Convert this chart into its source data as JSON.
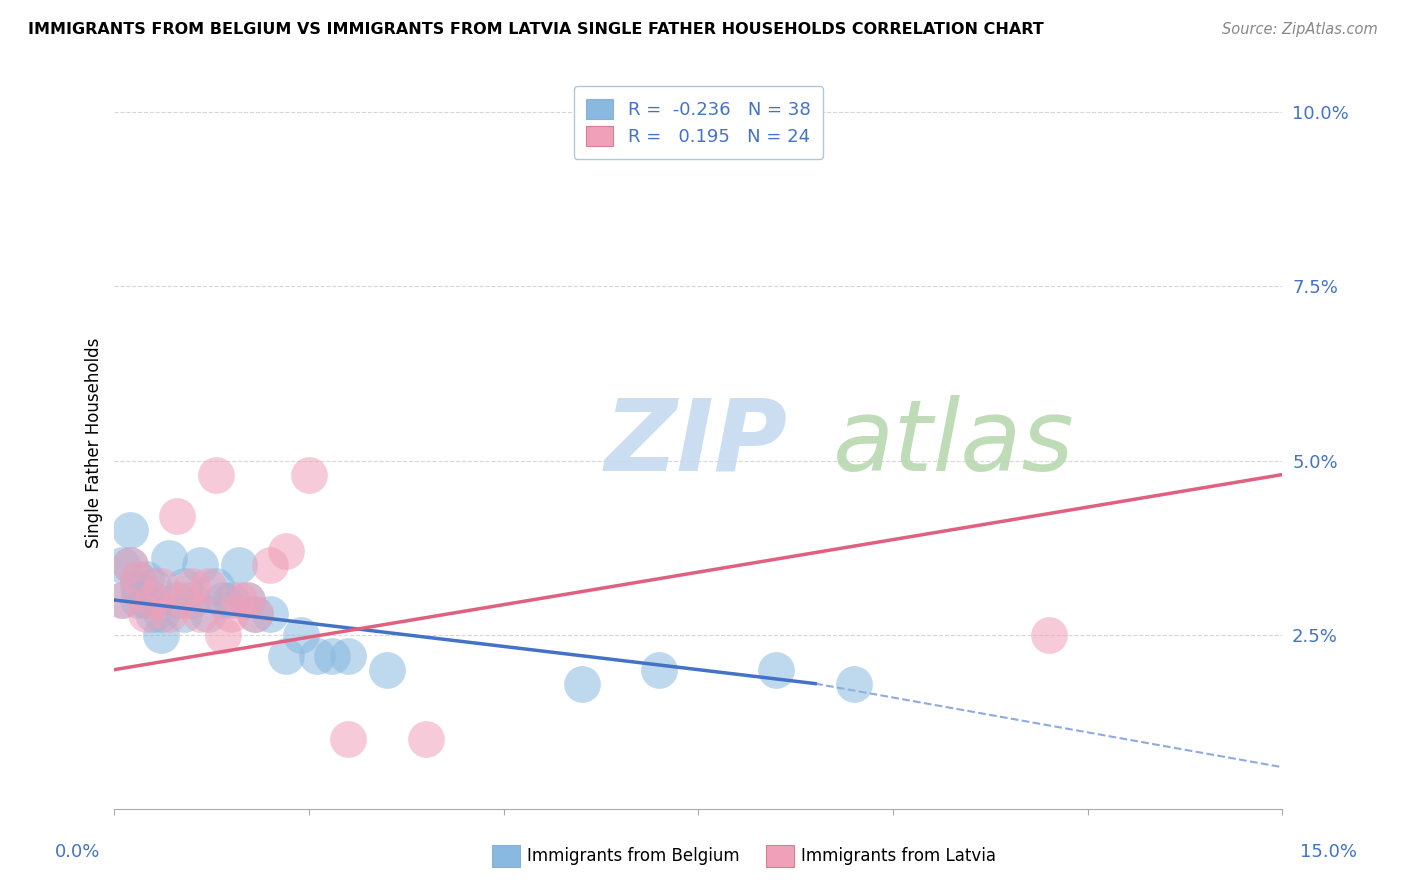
{
  "title": "IMMIGRANTS FROM BELGIUM VS IMMIGRANTS FROM LATVIA SINGLE FATHER HOUSEHOLDS CORRELATION CHART",
  "source": "Source: ZipAtlas.com",
  "ylabel": "Single Father Households",
  "legend_label_belgium": "Immigrants from Belgium",
  "legend_label_latvia": "Immigrants from Latvia",
  "xlim": [
    0.0,
    0.15
  ],
  "ylim": [
    0.0,
    0.105
  ],
  "R_belgium": -0.236,
  "N_belgium": 38,
  "R_latvia": 0.195,
  "N_latvia": 24,
  "color_belgium": "#89b8e0",
  "color_latvia": "#f0a0b8",
  "color_trend_belgium": "#4472c4",
  "color_trend_latvia": "#e06080",
  "watermark_zip": "ZIP",
  "watermark_atlas": "atlas",
  "watermark_color_zip": "#c8dff0",
  "watermark_color_atlas": "#d0e8c0",
  "y_tick_vals": [
    0.025,
    0.05,
    0.075,
    0.1
  ],
  "y_tick_labels": [
    "2.5%",
    "5.0%",
    "7.5%",
    "10.0%"
  ],
  "belgium_x": [
    0.001,
    0.001,
    0.002,
    0.002,
    0.003,
    0.003,
    0.003,
    0.004,
    0.004,
    0.005,
    0.005,
    0.005,
    0.006,
    0.006,
    0.007,
    0.008,
    0.009,
    0.009,
    0.01,
    0.011,
    0.012,
    0.013,
    0.014,
    0.015,
    0.016,
    0.017,
    0.018,
    0.02,
    0.022,
    0.024,
    0.026,
    0.028,
    0.03,
    0.035,
    0.06,
    0.07,
    0.085,
    0.095
  ],
  "belgium_y": [
    0.03,
    0.035,
    0.035,
    0.04,
    0.03,
    0.032,
    0.033,
    0.03,
    0.033,
    0.028,
    0.03,
    0.032,
    0.025,
    0.028,
    0.036,
    0.03,
    0.028,
    0.032,
    0.03,
    0.035,
    0.028,
    0.032,
    0.03,
    0.03,
    0.035,
    0.03,
    0.028,
    0.028,
    0.022,
    0.025,
    0.022,
    0.022,
    0.022,
    0.02,
    0.018,
    0.02,
    0.02,
    0.018
  ],
  "latvia_x": [
    0.001,
    0.002,
    0.003,
    0.004,
    0.005,
    0.006,
    0.007,
    0.008,
    0.009,
    0.01,
    0.011,
    0.012,
    0.013,
    0.014,
    0.015,
    0.016,
    0.017,
    0.018,
    0.02,
    0.022,
    0.025,
    0.03,
    0.04,
    0.12
  ],
  "latvia_y": [
    0.03,
    0.035,
    0.033,
    0.028,
    0.03,
    0.032,
    0.028,
    0.042,
    0.03,
    0.032,
    0.028,
    0.032,
    0.048,
    0.025,
    0.028,
    0.03,
    0.03,
    0.028,
    0.035,
    0.037,
    0.048,
    0.01,
    0.01,
    0.025
  ],
  "grid_color": "#cccccc",
  "grid_style": "--"
}
